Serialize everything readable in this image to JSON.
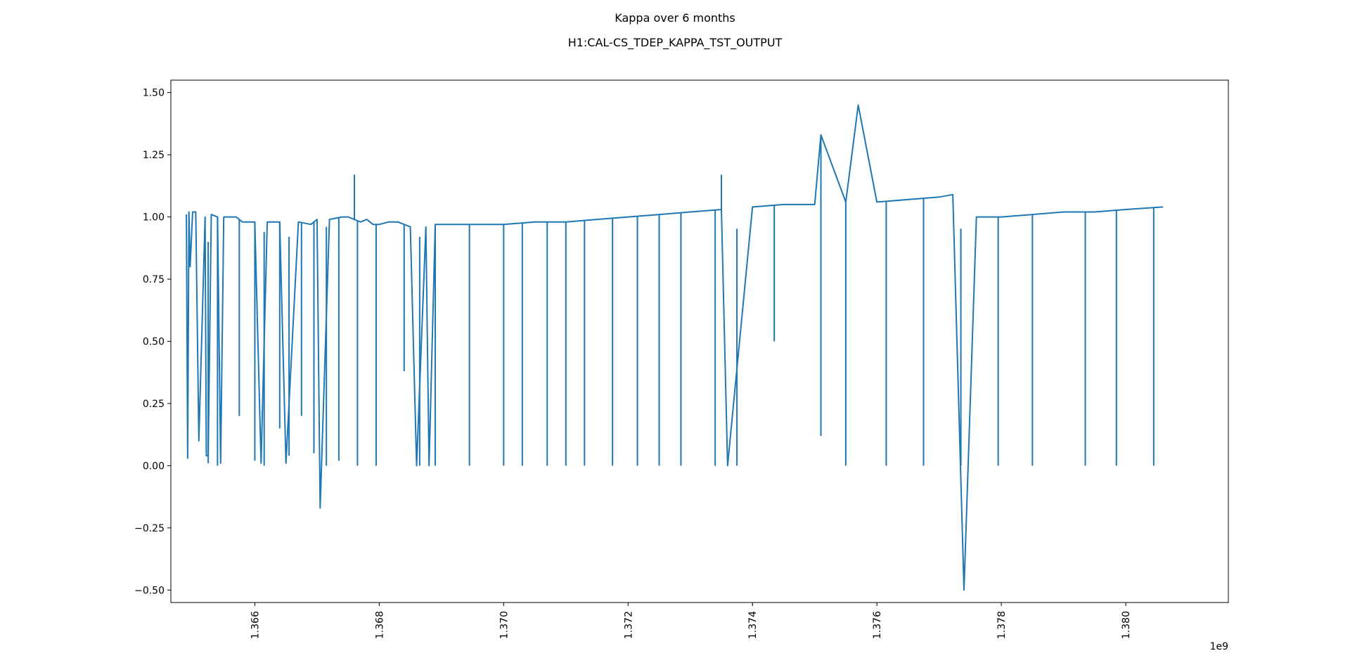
{
  "chart_data": {
    "type": "line",
    "title": "Kappa over 6 months",
    "subtitle": "H1:CAL-CS_TDEP_KAPPA_TST_OUTPUT",
    "xlabel": "",
    "ylabel": "",
    "x_offset_label": "1e9",
    "xlim": [
      1.36465,
      1.38165
    ],
    "ylim": [
      -0.55,
      1.55
    ],
    "x_ticks": [
      1.366,
      1.368,
      1.37,
      1.372,
      1.374,
      1.376,
      1.378,
      1.38
    ],
    "x_tick_labels": [
      "1.366",
      "1.368",
      "1.370",
      "1.372",
      "1.374",
      "1.376",
      "1.378",
      "1.380"
    ],
    "y_ticks": [
      -0.5,
      -0.25,
      0.0,
      0.25,
      0.5,
      0.75,
      1.0,
      1.25,
      1.5
    ],
    "y_tick_labels": [
      "−0.50",
      "−0.25",
      "0.00",
      "0.25",
      "0.50",
      "0.75",
      "1.00",
      "1.25",
      "1.50"
    ],
    "grid": false,
    "line_color": "#1f77b4",
    "series": [
      {
        "x": [
          1.3649,
          1.36492,
          1.36494,
          1.36496,
          1.365,
          1.36505,
          1.3651,
          1.3652,
          1.36522,
          1.36525,
          1.3653,
          1.3654,
          1.36545,
          1.3655,
          1.3656,
          1.3657,
          1.3658,
          1.366,
          1.3661,
          1.3662,
          1.3664,
          1.3665,
          1.3667,
          1.3669,
          1.367,
          1.36705,
          1.3672,
          1.3674,
          1.3675,
          1.3677,
          1.3678,
          1.3679,
          1.368,
          1.36815,
          1.3683,
          1.3685,
          1.3686,
          1.36875,
          1.3688,
          1.3689,
          1.369,
          1.3695,
          1.37,
          1.3705,
          1.371,
          1.3715,
          1.372,
          1.3725,
          1.373,
          1.3735,
          1.3736,
          1.374,
          1.3745,
          1.375,
          1.3751,
          1.3755,
          1.3757,
          1.376,
          1.377,
          1.37722,
          1.3774,
          1.3776,
          1.378,
          1.3785,
          1.379,
          1.3795,
          1.38,
          1.3806
        ],
        "y": [
          1.01,
          0.03,
          1.02,
          0.8,
          1.02,
          1.02,
          0.1,
          1.0,
          0.04,
          0.04,
          1.01,
          1.0,
          0.01,
          1.0,
          1.0,
          1.0,
          0.98,
          0.98,
          0.01,
          0.98,
          0.98,
          0.01,
          0.98,
          0.97,
          0.99,
          -0.17,
          0.99,
          1.0,
          1.0,
          0.98,
          0.99,
          0.97,
          0.97,
          0.98,
          0.98,
          0.96,
          0.0,
          0.96,
          0.0,
          0.97,
          0.97,
          0.97,
          0.97,
          0.98,
          0.98,
          0.99,
          1.0,
          1.01,
          1.02,
          1.03,
          0.0,
          1.04,
          1.05,
          1.05,
          1.33,
          1.06,
          1.45,
          1.06,
          1.08,
          1.09,
          -0.5,
          1.0,
          1.0,
          1.01,
          1.02,
          1.02,
          1.03,
          1.04
        ]
      }
    ],
    "dip_x": [
      1.36525,
      1.3654,
      1.36575,
      1.366,
      1.36615,
      1.3664,
      1.36655,
      1.36675,
      1.36695,
      1.36715,
      1.36735,
      1.36765,
      1.36795,
      1.3684,
      1.36865,
      1.3689,
      1.36945,
      1.37,
      1.3703,
      1.3707,
      1.371,
      1.3713,
      1.37175,
      1.37215,
      1.3725,
      1.37285,
      1.3734,
      1.37375,
      1.37435,
      1.3751,
      1.3755,
      1.37615,
      1.37675,
      1.37735,
      1.37795,
      1.3785,
      1.37935,
      1.37985,
      1.38045
    ],
    "dip_y": [
      0.01,
      0.0,
      0.2,
      0.02,
      0.0,
      0.15,
      0.04,
      0.2,
      0.05,
      0.0,
      0.02,
      0.0,
      0.0,
      0.38,
      0.0,
      0.0,
      0.0,
      0.0,
      0.0,
      0.0,
      0.0,
      0.0,
      0.0,
      0.0,
      0.0,
      0.0,
      0.0,
      0.0,
      0.5,
      0.12,
      0.0,
      0.0,
      0.0,
      0.0,
      0.0,
      0.0,
      0.0,
      0.0,
      0.0
    ],
    "spikes": [
      {
        "x": 1.3676,
        "y": 1.17
      },
      {
        "x": 1.3735,
        "y": 1.17
      },
      {
        "x": 1.3751,
        "y": 1.33
      },
      {
        "x": 1.3757,
        "y": 1.45
      }
    ]
  }
}
